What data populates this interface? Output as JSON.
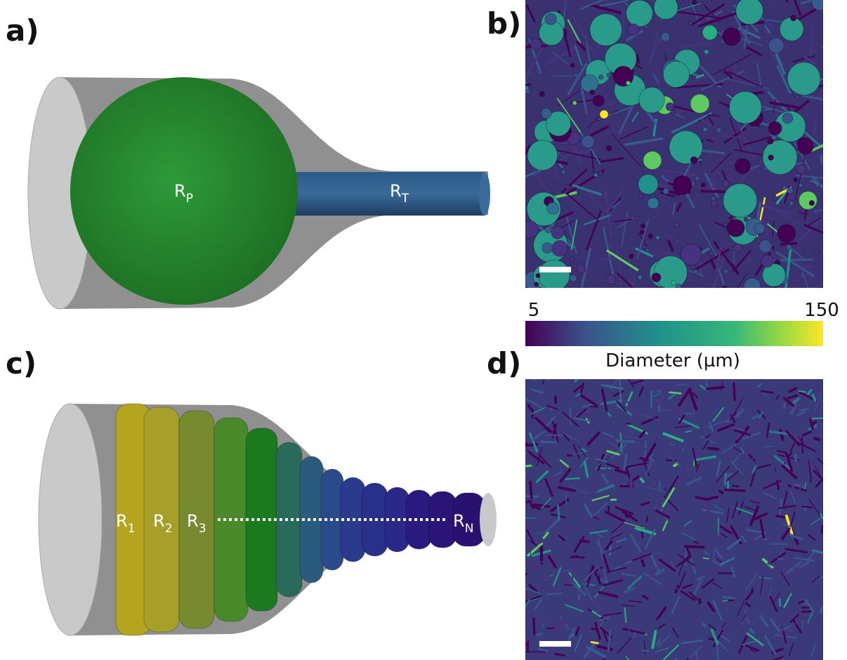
{
  "panels": {
    "a": {
      "label": "a)",
      "pore": {
        "main": "R",
        "sub": "P"
      },
      "throat": {
        "main": "R",
        "sub": "T"
      }
    },
    "b": {
      "label": "b)"
    },
    "c": {
      "label": "c)",
      "rings": [
        {
          "main": "R",
          "sub": "1"
        },
        {
          "main": "R",
          "sub": "2"
        },
        {
          "main": "R",
          "sub": "3"
        },
        {
          "main": "R",
          "sub": "N"
        }
      ]
    },
    "d": {
      "label": "d)"
    }
  },
  "colorbar": {
    "min": "5",
    "max": "150",
    "label": "Diameter (µm)"
  }
}
